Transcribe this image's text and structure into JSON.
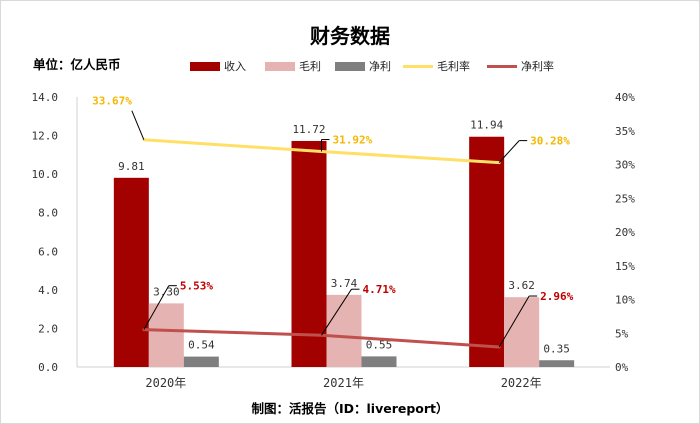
{
  "title": "财务数据",
  "unit_label": "单位：亿人民币",
  "footer": "制图：活报告（ID：livereport）",
  "colors": {
    "revenue": "#a30000",
    "gross_profit": "#e6b3b3",
    "net_profit": "#7f7f7f",
    "gross_margin": "#ffe066",
    "net_margin": "#c0504d",
    "gross_margin_label": "#f5b800",
    "net_margin_label": "#c00000"
  },
  "legend": {
    "revenue": "收入",
    "gross_profit": "毛利",
    "net_profit": "净利",
    "gross_margin": "毛利率",
    "net_margin": "净利率"
  },
  "chart_data": {
    "type": "bar",
    "categories": [
      "2020年",
      "2021年",
      "2022年"
    ],
    "series": [
      {
        "name": "收入",
        "type": "bar",
        "axis": "left",
        "values": [
          9.81,
          11.72,
          11.94
        ],
        "labels": [
          "9.81",
          "11.72",
          "11.94"
        ]
      },
      {
        "name": "毛利",
        "type": "bar",
        "axis": "left",
        "values": [
          3.3,
          3.74,
          3.62
        ],
        "labels": [
          "3.30",
          "3.74",
          "3.62"
        ]
      },
      {
        "name": "净利",
        "type": "bar",
        "axis": "left",
        "values": [
          0.54,
          0.55,
          0.35
        ],
        "labels": [
          "0.54",
          "0.55",
          "0.35"
        ]
      },
      {
        "name": "毛利率",
        "type": "line",
        "axis": "right",
        "values": [
          33.67,
          31.92,
          30.28
        ],
        "labels": [
          "33.67%",
          "31.92%",
          "30.28%"
        ]
      },
      {
        "name": "净利率",
        "type": "line",
        "axis": "right",
        "values": [
          5.53,
          4.71,
          2.96
        ],
        "labels": [
          "5.53%",
          "4.71%",
          "2.96%"
        ]
      }
    ],
    "left_axis": {
      "range": [
        0,
        14
      ],
      "ticks": [
        "0.0",
        "2.0",
        "4.0",
        "6.0",
        "8.0",
        "10.0",
        "12.0",
        "14.0"
      ]
    },
    "right_axis": {
      "range": [
        0,
        40
      ],
      "ticks": [
        "0%",
        "5%",
        "10%",
        "15%",
        "20%",
        "25%",
        "30%",
        "35%",
        "40%"
      ]
    },
    "grid": false,
    "legend_position": "top"
  }
}
